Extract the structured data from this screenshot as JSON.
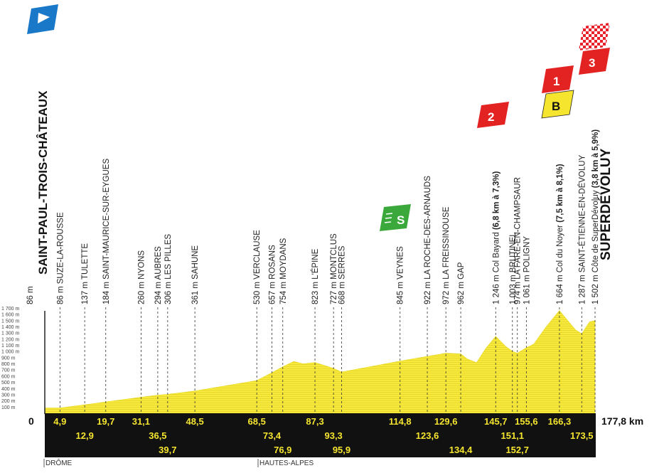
{
  "start": {
    "name": "SAINT-PAUL-TROIS-CHÂTEAUX",
    "alt": "86 m",
    "km": "0"
  },
  "finish": {
    "name": "SUPERDÉVOLUY",
    "alt": "1 502 m",
    "km": "177,8 km"
  },
  "y_ticks": [
    "100 m",
    "200 m",
    "300 m",
    "400 m",
    "500 m",
    "600 m",
    "700 m",
    "800 m",
    "900 m",
    "1 000 m",
    "1 100 m",
    "1 200 m",
    "1 300 m",
    "1 400 m",
    "1 500 m",
    "1 600 m",
    "1 700 m"
  ],
  "regions": [
    "DRÔME",
    "HAUTES-ALPES"
  ],
  "waypoints": [
    {
      "alt": "86 m",
      "name": "SUZE-LA-ROUSSE",
      "detail": "",
      "km": "4,9"
    },
    {
      "alt": "137 m",
      "name": "TULETTE",
      "detail": "",
      "km": "12,9"
    },
    {
      "alt": "184 m",
      "name": "SAINT-MAURICE-SUR-EYGUES",
      "detail": "",
      "km": "19,7"
    },
    {
      "alt": "260 m",
      "name": "NYONS",
      "detail": "",
      "km": "31,1"
    },
    {
      "alt": "294 m",
      "name": "AUBRES",
      "detail": "",
      "km": "36,5"
    },
    {
      "alt": "306 m",
      "name": "LES PILLES",
      "detail": "",
      "km": "39,7"
    },
    {
      "alt": "361 m",
      "name": "SAHUNE",
      "detail": "",
      "km": "48,5"
    },
    {
      "alt": "530 m",
      "name": "VERCLAUSE",
      "detail": "",
      "km": "68,5"
    },
    {
      "alt": "657 m",
      "name": "ROSANS",
      "detail": "",
      "km": "73,4"
    },
    {
      "alt": "754 m",
      "name": "MOYDANS",
      "detail": "",
      "km": "76,9"
    },
    {
      "alt": "823 m",
      "name": "L'ÉPINE",
      "detail": "",
      "km": "87,3"
    },
    {
      "alt": "727 m",
      "name": "MONTCLUS",
      "detail": "",
      "km": "93,3"
    },
    {
      "alt": "668 m",
      "name": "SERRES",
      "detail": "",
      "km": "95,9"
    },
    {
      "alt": "845 m",
      "name": "VEYNES",
      "detail": "",
      "km": "114,8"
    },
    {
      "alt": "922 m",
      "name": "LA ROCHE-DES-ARNAUDS",
      "detail": "",
      "km": "123,6"
    },
    {
      "alt": "972 m",
      "name": "LA FREISSINOUSE",
      "detail": "",
      "km": "129,6"
    },
    {
      "alt": "962 m",
      "name": "GAP",
      "detail": "",
      "km": "134,4"
    },
    {
      "alt": "1 246 m",
      "name": "Col Bayard",
      "detail": "(6,8 km à 7,3%)",
      "km": "145,7"
    },
    {
      "alt": "1 003 m",
      "name": "BRUTINEL",
      "detail": "",
      "km": "151,1"
    },
    {
      "alt": "974 m",
      "name": "LA FARE-EN-CHAMPSAUR",
      "detail": "",
      "km": "152,7"
    },
    {
      "alt": "1 061 m",
      "name": "POLIGNY",
      "detail": "",
      "km": "155,6"
    },
    {
      "alt": "1 664 m",
      "name": "Col du Noyer",
      "detail": "(7,5 km à 8,1%)",
      "km": "166,3"
    },
    {
      "alt": "1 287 m",
      "name": "SAINT-ÉTIENNE-EN-DÉVOLUY",
      "detail": "",
      "km": "173,5"
    },
    {
      "alt": "1 502 m",
      "name": "Côte de SuperDévoluy",
      "detail": "(3,8 km à 5,9%)",
      "km": ""
    }
  ],
  "badges": {
    "sprint": "S",
    "bonus": "B",
    "col_bayard": "2",
    "col_noyer": "1",
    "cote_superdevoluy": "3"
  }
}
